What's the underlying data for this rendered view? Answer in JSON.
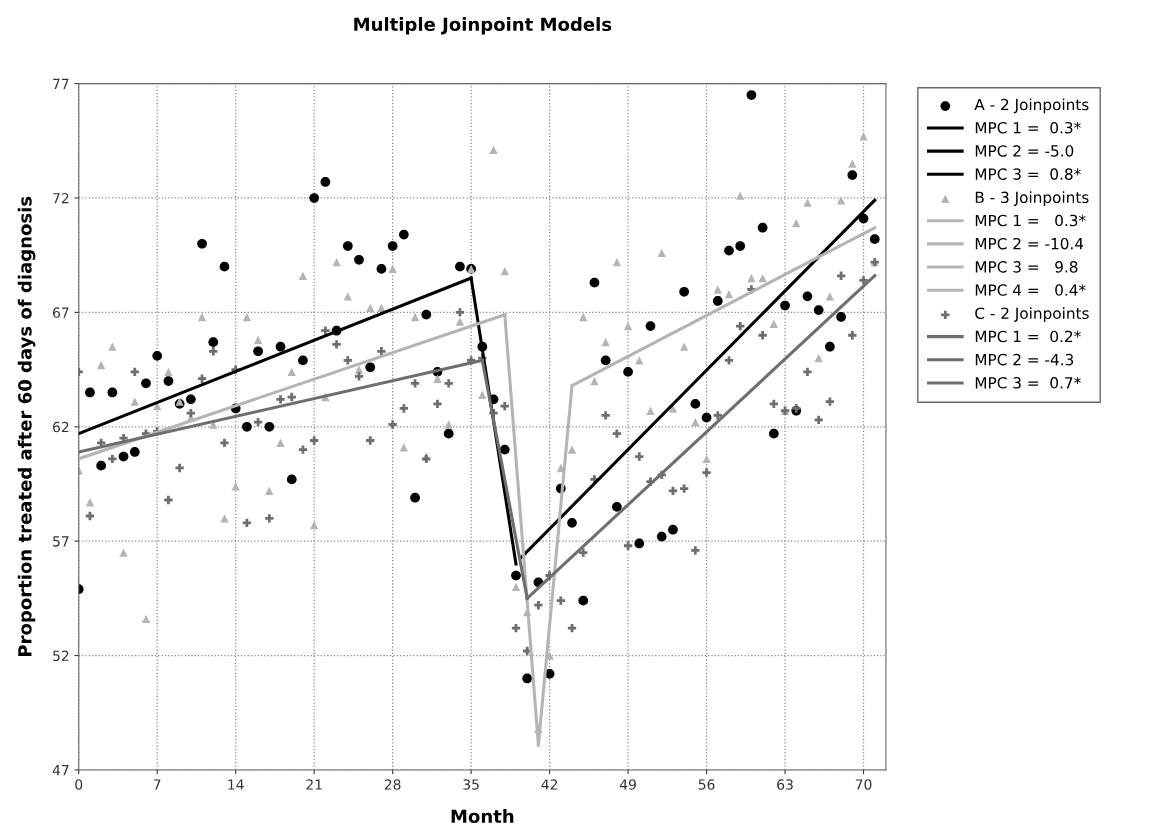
{
  "chart_data": {
    "type": "scatter",
    "title": "Multiple Joinpoint Models",
    "xlabel": "Month",
    "ylabel": "Proportion treated after 60 days of diagnosis",
    "x": [
      0,
      1,
      2,
      3,
      4,
      5,
      6,
      7,
      8,
      9,
      10,
      11,
      12,
      13,
      14,
      15,
      16,
      17,
      18,
      19,
      20,
      21,
      22,
      23,
      24,
      25,
      26,
      27,
      28,
      29,
      30,
      31,
      32,
      33,
      34,
      35,
      36,
      37,
      38,
      39,
      40,
      41,
      42,
      43,
      44,
      45,
      46,
      47,
      48,
      49,
      50,
      51,
      52,
      53,
      54,
      55,
      56,
      57,
      58,
      59,
      60,
      61,
      62,
      63,
      64,
      65,
      66,
      67,
      68,
      69,
      70,
      71
    ],
    "series": [
      {
        "name": "A - 2 Joinpoints",
        "marker": "circle",
        "color": "#000000",
        "values": [
          54.9,
          63.5,
          60.3,
          63.5,
          60.7,
          60.9,
          63.9,
          65.1,
          64.0,
          63.0,
          63.2,
          70.0,
          65.7,
          69.0,
          62.8,
          62.0,
          65.3,
          62.0,
          65.5,
          59.7,
          64.9,
          72.0,
          72.7,
          66.2,
          69.9,
          69.3,
          64.6,
          68.9,
          69.9,
          70.4,
          58.9,
          66.9,
          64.4,
          61.7,
          69.0,
          68.9,
          65.5,
          63.2,
          61.0,
          55.5,
          51.0,
          55.2,
          51.2,
          59.3,
          57.8,
          54.4,
          68.3,
          64.9,
          58.5,
          64.4,
          56.9,
          66.4,
          57.2,
          57.5,
          67.9,
          63.0,
          62.4,
          67.5,
          69.7,
          69.9,
          76.5,
          70.7,
          61.7,
          67.3,
          62.7,
          67.7,
          67.1,
          65.5,
          66.8,
          73.0,
          71.1,
          70.2
        ]
      },
      {
        "name": "MPC 1 =  0.3*",
        "type": "line",
        "marker": "none",
        "color": "#000000",
        "x": [
          0,
          35
        ],
        "values": [
          61.7,
          68.5
        ]
      },
      {
        "name": "MPC 2 = -5.0",
        "type": "line",
        "marker": "none",
        "color": "#000000",
        "x": [
          35,
          39
        ],
        "values": [
          68.5,
          56.0
        ]
      },
      {
        "name": "MPC 3 =  0.8*",
        "type": "line",
        "marker": "none",
        "color": "#000000",
        "x": [
          39.5,
          71
        ],
        "values": [
          56.3,
          71.9
        ]
      },
      {
        "name": "B - 3 Joinpoints",
        "marker": "triangle",
        "color": "#b4b4b4",
        "values": [
          60.1,
          58.7,
          64.7,
          65.5,
          56.5,
          63.1,
          53.6,
          62.9,
          64.4,
          63.1,
          62.4,
          66.8,
          62.1,
          58.0,
          59.4,
          66.8,
          65.8,
          59.2,
          61.3,
          64.4,
          68.6,
          57.7,
          63.3,
          69.2,
          67.7,
          64.5,
          67.2,
          67.2,
          68.9,
          61.1,
          66.8,
          60.7,
          64.1,
          62.1,
          66.6,
          68.9,
          63.4,
          74.1,
          68.8,
          55.0,
          53.9,
          48.8,
          52.0,
          60.2,
          61.0,
          66.8,
          64.0,
          65.7,
          69.2,
          66.4,
          64.9,
          62.7,
          69.6,
          62.8,
          65.5,
          62.2,
          60.6,
          68.0,
          67.8,
          72.1,
          68.5,
          68.5,
          66.5,
          62.7,
          70.9,
          71.8,
          65.0,
          67.7,
          71.9,
          73.5,
          74.7,
          69.2
        ]
      },
      {
        "name": "MPC 1 =   0.3*",
        "type": "line",
        "marker": "none",
        "color": "#b4b4b4",
        "x": [
          0,
          38
        ],
        "values": [
          60.6,
          66.9
        ]
      },
      {
        "name": "MPC 2 = -10.4",
        "type": "line",
        "marker": "none",
        "color": "#b4b4b4",
        "x": [
          38,
          41
        ],
        "values": [
          66.9,
          48.1
        ]
      },
      {
        "name": "MPC 3 =   9.8",
        "type": "line",
        "marker": "none",
        "color": "#b4b4b4",
        "x": [
          41,
          44
        ],
        "values": [
          48.1,
          63.8
        ]
      },
      {
        "name": "MPC 4 =   0.4*",
        "type": "line",
        "marker": "none",
        "color": "#b4b4b4",
        "x": [
          44,
          71
        ],
        "values": [
          63.8,
          70.7
        ]
      },
      {
        "name": "C - 2 Joinpoints",
        "marker": "cross",
        "color": "#6e6e6e",
        "values": [
          64.4,
          58.1,
          61.3,
          60.6,
          61.5,
          64.4,
          61.7,
          61.8,
          58.8,
          60.2,
          62.6,
          64.1,
          65.3,
          61.3,
          64.5,
          57.8,
          62.2,
          58.0,
          63.2,
          63.3,
          61.0,
          61.4,
          66.2,
          65.6,
          64.9,
          64.2,
          61.4,
          65.3,
          62.1,
          62.8,
          63.9,
          60.6,
          63.0,
          63.9,
          67.0,
          64.9,
          65.0,
          62.6,
          62.9,
          53.2,
          52.2,
          54.2,
          55.5,
          54.4,
          53.2,
          56.5,
          59.7,
          62.5,
          61.7,
          56.8,
          60.7,
          59.6,
          59.9,
          59.2,
          59.3,
          56.6,
          60.0,
          62.5,
          64.9,
          66.4,
          68.0,
          66.0,
          63.0,
          62.7,
          62.8,
          64.4,
          62.3,
          63.1,
          68.6,
          66.0,
          68.4,
          69.2
        ]
      },
      {
        "name": "MPC 1 =  0.2*",
        "type": "line",
        "marker": "none",
        "color": "#6e6e6e",
        "x": [
          0,
          36
        ],
        "values": [
          60.9,
          64.9
        ]
      },
      {
        "name": "MPC 2 = -4.3",
        "type": "line",
        "marker": "none",
        "color": "#6e6e6e",
        "x": [
          36,
          40
        ],
        "values": [
          64.9,
          54.5
        ]
      },
      {
        "name": "MPC 3 =  0.7*",
        "type": "line",
        "marker": "none",
        "color": "#6e6e6e",
        "x": [
          40,
          71
        ],
        "values": [
          54.5,
          68.6
        ]
      }
    ],
    "xlim": [
      0,
      72
    ],
    "xticks": [
      0,
      7,
      14,
      21,
      28,
      35,
      42,
      49,
      56,
      63,
      70
    ],
    "ylim": [
      47,
      77
    ],
    "yticks": [
      47,
      52,
      57,
      62,
      67,
      72,
      77
    ],
    "grid": true,
    "legend": "top right",
    "line_style": "solid"
  }
}
